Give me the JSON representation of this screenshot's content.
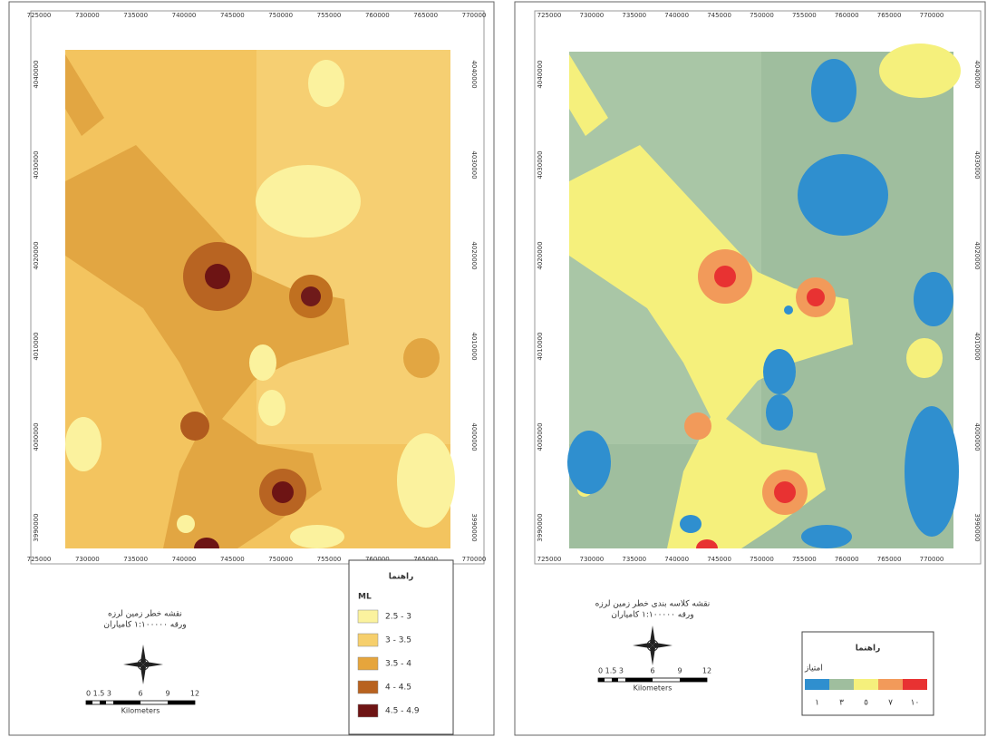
{
  "left_map": {
    "x_labels": [
      725000,
      730000,
      735000,
      740000,
      745000,
      750000,
      755000,
      760000,
      765000,
      770000
    ],
    "y_labels": [
      4040000,
      4030000,
      4020000,
      4010000,
      4000000,
      3990000
    ],
    "title": "نقشه خطر زمین لرزه",
    "subtitle": "ورقه ۱:۱۰۰۰۰۰ کامیاران",
    "scale_labels": [
      "0 1.5 3",
      "6",
      "9",
      "12"
    ],
    "scale_unit": "Kilometers",
    "legend": {
      "title": "راهنما",
      "heading": "ML",
      "items": [
        {
          "label": "2.5 - 3",
          "color": "#fbf29e"
        },
        {
          "label": "3 - 3.5",
          "color": "#f6cf6c"
        },
        {
          "label": "3.5 - 4",
          "color": "#e6a53c"
        },
        {
          "label": "4 - 4.5",
          "color": "#b8621f"
        },
        {
          "label": "4.5 - 4.9",
          "color": "#6e1414"
        }
      ]
    }
  },
  "right_map": {
    "x_labels": [
      725000,
      730000,
      735000,
      740000,
      745000,
      750000,
      755000,
      760000,
      765000,
      770000
    ],
    "y_labels": [
      4040000,
      4030000,
      4020000,
      4010000,
      4000000,
      3990000
    ],
    "title": "نقشه کلاسه بندی خطر زمین لرزه",
    "subtitle": "ورقه ۱:۱۰۰۰۰۰ کامیاران",
    "scale_labels": [
      "0 1.5 3",
      "6",
      "9",
      "12"
    ],
    "scale_unit": "Kilometers",
    "legend": {
      "title": "راهنما",
      "heading": "امتیاز",
      "items": [
        {
          "label": "١",
          "color": "#2f8fcf"
        },
        {
          "label": "٣",
          "color": "#9fbe9e"
        },
        {
          "label": "٥",
          "color": "#f5f07c"
        },
        {
          "label": "٧",
          "color": "#f29a5a"
        },
        {
          "label": "١٠",
          "color": "#e83232"
        }
      ]
    }
  }
}
